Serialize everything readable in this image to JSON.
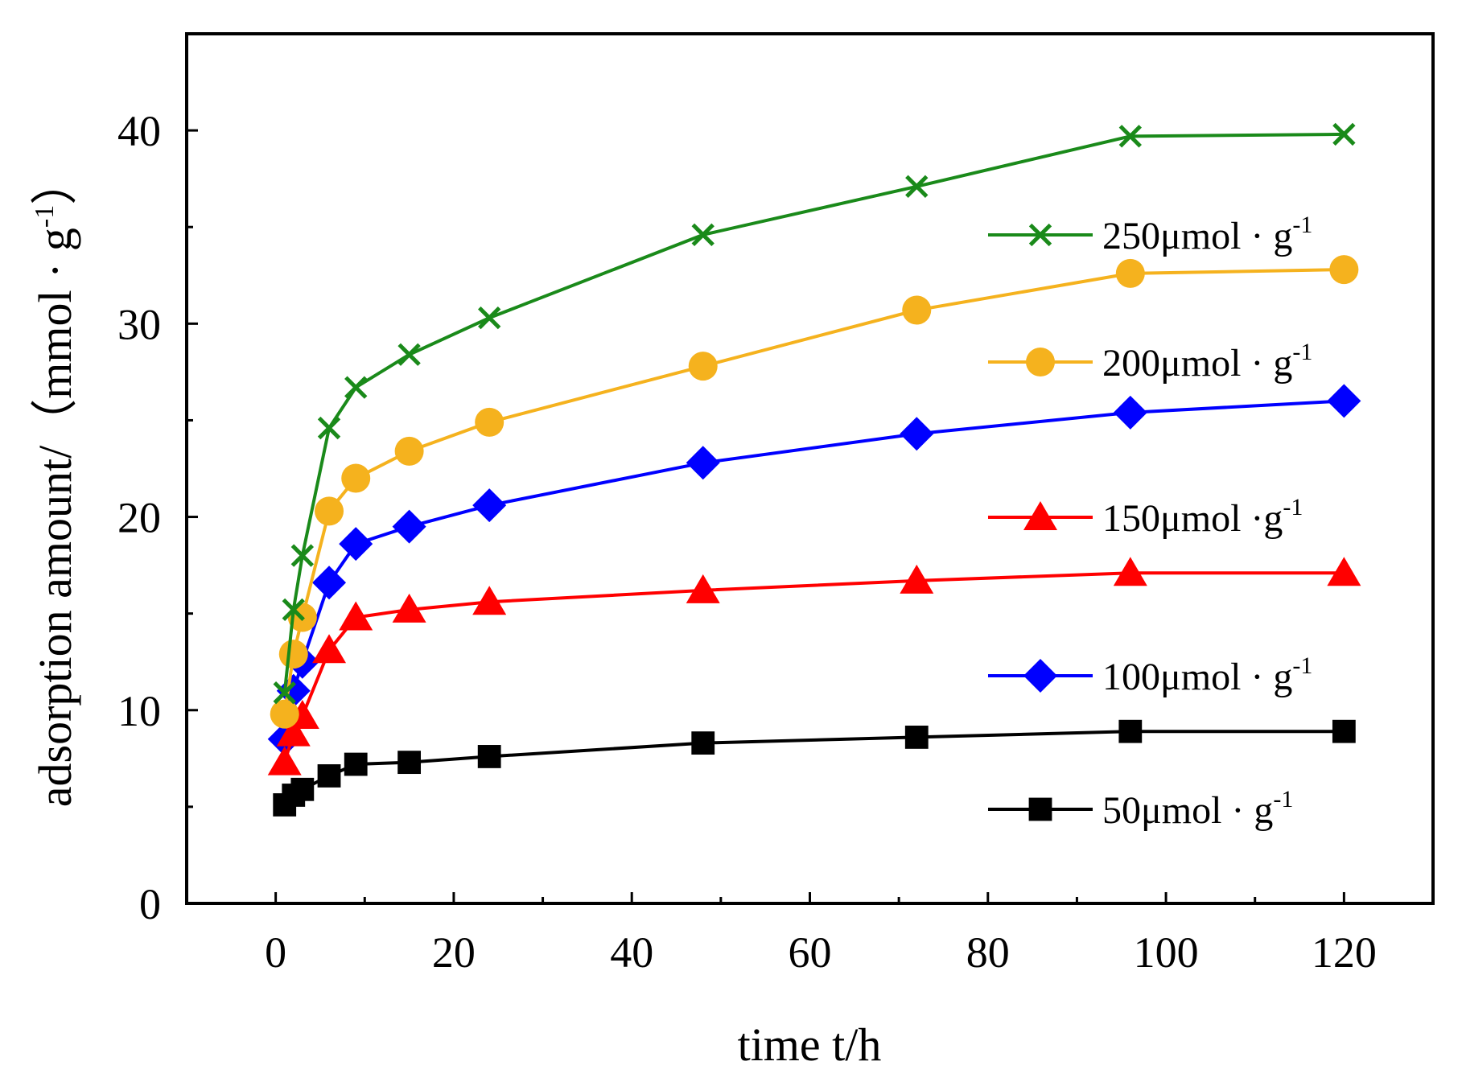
{
  "chart_data": {
    "type": "line",
    "title": "",
    "xlabel": "time t/h",
    "ylabel": "adsorption amount/（mmol · g",
    "ylabel_sup": "-1",
    "ylabel_close": "）",
    "xlim": [
      -10,
      130
    ],
    "ylim": [
      0,
      45
    ],
    "xticks": [
      0,
      20,
      40,
      60,
      80,
      100,
      120
    ],
    "yticks": [
      0,
      10,
      20,
      30,
      40
    ],
    "x": [
      1,
      2,
      3,
      6,
      9,
      15,
      24,
      48,
      72,
      96,
      120
    ],
    "legend_position": "right",
    "series": [
      {
        "name": "250μmol · g",
        "sup": "-1",
        "marker": "x",
        "color": "#1a8a1a",
        "values": [
          10.9,
          15.2,
          18.0,
          24.6,
          26.7,
          28.4,
          30.3,
          34.6,
          37.1,
          39.7,
          39.8
        ]
      },
      {
        "name": "200μmol · g",
        "sup": "-1",
        "marker": "circle",
        "color": "#f5b21e",
        "values": [
          9.8,
          12.9,
          14.8,
          20.3,
          22.0,
          23.4,
          24.9,
          27.8,
          30.7,
          32.6,
          32.8
        ]
      },
      {
        "name": "150μmol ·g",
        "sup": "-1",
        "marker": "triangle",
        "color": "#ff0000",
        "values": [
          7.3,
          8.8,
          9.7,
          13.1,
          14.8,
          15.2,
          15.6,
          16.2,
          16.7,
          17.1,
          17.1
        ]
      },
      {
        "name": "100μmol · g",
        "sup": "-1",
        "marker": "diamond",
        "color": "#0000ff",
        "values": [
          8.5,
          11.0,
          12.5,
          16.6,
          18.6,
          19.5,
          20.6,
          22.8,
          24.3,
          25.4,
          26.0
        ]
      },
      {
        "name": "50μmol · g",
        "sup": "-1",
        "marker": "square",
        "color": "#000000",
        "values": [
          5.1,
          5.6,
          5.9,
          6.6,
          7.2,
          7.3,
          7.6,
          8.3,
          8.6,
          8.9,
          8.9
        ]
      }
    ]
  }
}
